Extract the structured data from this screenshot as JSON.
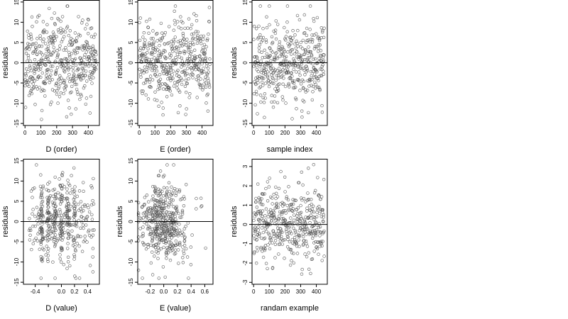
{
  "chart_data": [
    {
      "type": "scatter",
      "xlabel": "D (order)",
      "ylabel": "residuals",
      "xlim": [
        -10,
        470
      ],
      "ylim": [
        -15.5,
        15.5
      ],
      "xticks": [
        0,
        100,
        200,
        300,
        400
      ],
      "yticks": [
        -15,
        -10,
        -5,
        0,
        5,
        10,
        15
      ],
      "reference_line_y": 0,
      "n_points": 450,
      "x_pattern": "index",
      "y_mean": 0,
      "y_sd": 5,
      "y_range": [
        -14,
        14
      ],
      "seed": 11
    },
    {
      "type": "scatter",
      "xlabel": "E (order)",
      "ylabel": "residuals",
      "xlim": [
        -10,
        470
      ],
      "ylim": [
        -15.5,
        15.5
      ],
      "xticks": [
        0,
        100,
        200,
        300,
        400
      ],
      "yticks": [
        -15,
        -10,
        -5,
        0,
        5,
        10,
        15
      ],
      "reference_line_y": 0,
      "n_points": 450,
      "x_pattern": "index",
      "y_mean": 0,
      "y_sd": 5,
      "y_range": [
        -14,
        14
      ],
      "seed": 23
    },
    {
      "type": "scatter",
      "xlabel": "sample index",
      "ylabel": "residuals",
      "xlim": [
        -10,
        470
      ],
      "ylim": [
        -15.5,
        15.5
      ],
      "xticks": [
        0,
        100,
        200,
        300,
        400
      ],
      "yticks": [
        -15,
        -10,
        -5,
        0,
        5,
        10,
        15
      ],
      "reference_line_y": 0,
      "n_points": 450,
      "x_pattern": "index",
      "y_mean": 0,
      "y_sd": 5,
      "y_range": [
        -14,
        14
      ],
      "seed": 37
    },
    {
      "type": "scatter",
      "xlabel": "D (value)",
      "ylabel": "residuals",
      "xlim": [
        -0.58,
        0.58
      ],
      "ylim": [
        -15.5,
        15.5
      ],
      "xticks": [
        -0.4,
        -0.2,
        0.0,
        0.2,
        0.4
      ],
      "xtick_labels": [
        "-0.4",
        "",
        "0.0",
        "0.2",
        "0.4"
      ],
      "yticks": [
        -15,
        -10,
        -5,
        0,
        5,
        10,
        15
      ],
      "reference_line_y": 0,
      "n_points": 450,
      "x_pattern": "clustered",
      "x_clusters": [
        -0.3,
        -0.2,
        -0.1,
        0.0,
        0.1,
        0.2
      ],
      "y_mean": 0,
      "y_sd": 5,
      "y_range": [
        -14,
        14
      ],
      "seed": 53
    },
    {
      "type": "scatter",
      "xlabel": "E (value)",
      "ylabel": "residuals",
      "xlim": [
        -0.38,
        0.72
      ],
      "ylim": [
        -15.5,
        15.5
      ],
      "xticks": [
        -0.2,
        0.0,
        0.2,
        0.4,
        0.6
      ],
      "xtick_labels": [
        "-0.2",
        "0.0",
        "0.2",
        "0.4",
        "0.6"
      ],
      "yticks": [
        -15,
        -10,
        -5,
        0,
        5,
        10,
        15
      ],
      "reference_line_y": 0,
      "n_points": 450,
      "x_pattern": "normal",
      "x_mean": 0.0,
      "x_sd": 0.18,
      "y_mean": 0,
      "y_sd": 5,
      "y_range": [
        -14,
        14
      ],
      "seed": 71
    },
    {
      "type": "scatter",
      "xlabel": "randam example",
      "ylabel": "residuals",
      "xlim": [
        -10,
        470
      ],
      "ylim": [
        -3.1,
        3.4
      ],
      "xticks": [
        0,
        100,
        200,
        300,
        400
      ],
      "yticks": [
        -3,
        -2,
        -1,
        0,
        1,
        2,
        3
      ],
      "reference_line_y": 0,
      "n_points": 450,
      "x_pattern": "index",
      "y_mean": 0,
      "y_sd": 1,
      "y_range": [
        -3,
        3.1
      ],
      "seed": 97
    }
  ]
}
